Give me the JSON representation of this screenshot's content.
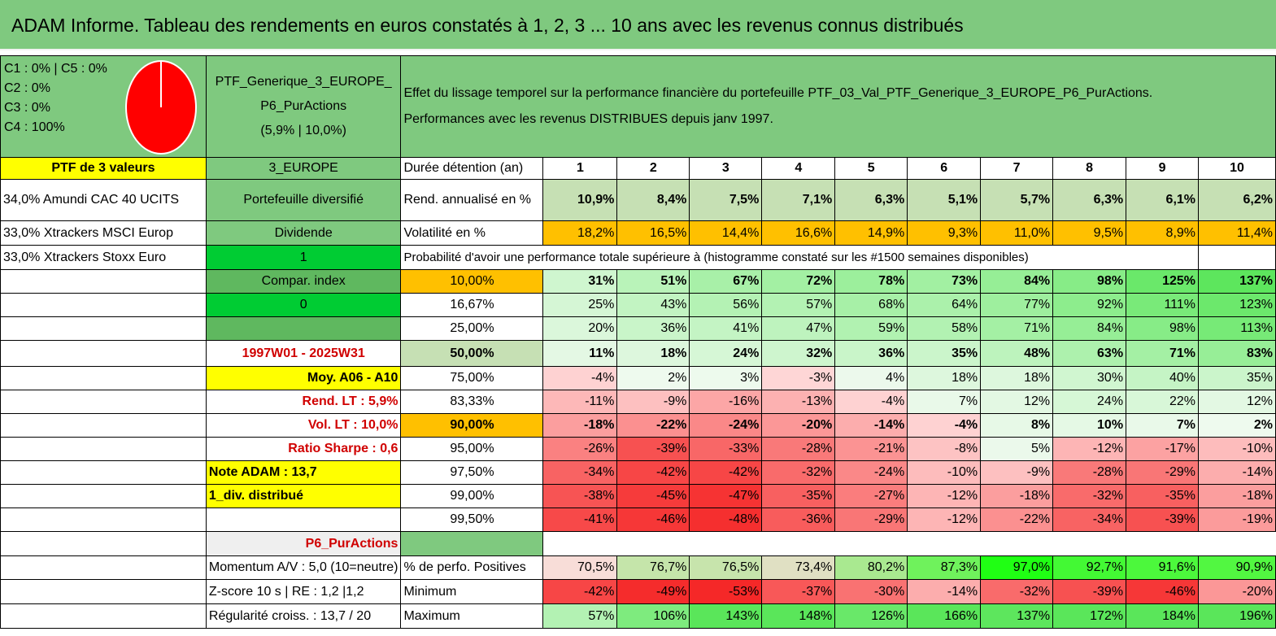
{
  "title": "ADAM Informe. Tableau des rendements en euros constatés à 1, 2, 3 ... 10 ans avec les revenus connus distribués",
  "alloc": {
    "lines": [
      "C1 : 0% | C5 : 0%",
      "C2 : 0%",
      "C3 : 0%",
      "C4 : 100%"
    ]
  },
  "ptf": {
    "name_line1": "PTF_Generique_3_EUROPE_",
    "name_line2": "P6_PurActions",
    "name_line3": "(5,9% | 10,0%)"
  },
  "effet": {
    "line1": "Effet du lissage temporel sur la performance financière du portefeuille PTF_03_Val_PTF_Generique_3_EUROPE_P6_PurActions.",
    "line2": "Performances avec les revenus DISTRIBUES depuis janv 1997."
  },
  "col_a": [
    "PTF de 3 valeurs",
    "34,0% Amundi CAC 40 UCITS",
    "33,0% Xtrackers MSCI Europ",
    "33,0% Xtrackers Stoxx Euro"
  ],
  "col_b": [
    "3_EUROPE",
    "Portefeuille diversifié",
    "Dividende",
    "1",
    "Compar. index",
    "0",
    "",
    "1997W01 - 2025W31",
    "Moy. A06 - A10",
    "Rend. LT : 5,9%",
    "Vol. LT : 10,0%",
    "Ratio Sharpe : 0,6",
    "Note ADAM : 13,7",
    "1_div. distribué",
    "",
    "P6_PurActions"
  ],
  "header": {
    "label": "Durée détention (an)",
    "years": [
      "1",
      "2",
      "3",
      "4",
      "5",
      "6",
      "7",
      "8",
      "9",
      "10"
    ]
  },
  "rend": {
    "label": "Rend. annualisé en %",
    "values": [
      "10,9%",
      "8,4%",
      "7,5%",
      "7,1%",
      "6,3%",
      "5,1%",
      "5,7%",
      "6,3%",
      "6,1%",
      "6,2%"
    ]
  },
  "vol": {
    "label": "Volatilité en %",
    "values": [
      "18,2%",
      "16,5%",
      "14,4%",
      "16,6%",
      "14,9%",
      "9,3%",
      "11,0%",
      "9,5%",
      "8,9%",
      "11,4%"
    ]
  },
  "proba_label": "Probabilité d'avoir une performance totale supérieure à (histogramme constaté sur les #1500 semaines disponibles)",
  "quantiles": [
    {
      "label": "10,00%",
      "values": [
        "31%",
        "51%",
        "67%",
        "72%",
        "78%",
        "73%",
        "84%",
        "98%",
        "125%",
        "137%"
      ]
    },
    {
      "label": "16,67%",
      "values": [
        "25%",
        "43%",
        "56%",
        "57%",
        "68%",
        "64%",
        "77%",
        "92%",
        "111%",
        "123%"
      ]
    },
    {
      "label": "25,00%",
      "values": [
        "20%",
        "36%",
        "41%",
        "47%",
        "59%",
        "58%",
        "71%",
        "84%",
        "98%",
        "113%"
      ]
    },
    {
      "label": "50,00%",
      "values": [
        "11%",
        "18%",
        "24%",
        "32%",
        "36%",
        "35%",
        "48%",
        "63%",
        "71%",
        "83%"
      ]
    },
    {
      "label": "75,00%",
      "values": [
        "-4%",
        "2%",
        "3%",
        "-3%",
        "4%",
        "18%",
        "18%",
        "30%",
        "40%",
        "35%"
      ]
    },
    {
      "label": "83,33%",
      "values": [
        "-11%",
        "-9%",
        "-16%",
        "-13%",
        "-4%",
        "7%",
        "12%",
        "24%",
        "22%",
        "12%"
      ]
    },
    {
      "label": "90,00%",
      "values": [
        "-18%",
        "-22%",
        "-24%",
        "-20%",
        "-14%",
        "-4%",
        "8%",
        "10%",
        "7%",
        "2%"
      ]
    },
    {
      "label": "95,00%",
      "values": [
        "-26%",
        "-39%",
        "-33%",
        "-28%",
        "-21%",
        "-8%",
        "5%",
        "-12%",
        "-17%",
        "-10%"
      ]
    },
    {
      "label": "97,50%",
      "values": [
        "-34%",
        "-42%",
        "-42%",
        "-32%",
        "-24%",
        "-10%",
        "-9%",
        "-28%",
        "-29%",
        "-14%"
      ]
    },
    {
      "label": "99,00%",
      "values": [
        "-38%",
        "-45%",
        "-47%",
        "-35%",
        "-27%",
        "-12%",
        "-18%",
        "-32%",
        "-35%",
        "-18%"
      ]
    },
    {
      "label": "99,50%",
      "values": [
        "-41%",
        "-46%",
        "-48%",
        "-36%",
        "-29%",
        "-12%",
        "-22%",
        "-34%",
        "-39%",
        "-19%"
      ]
    }
  ],
  "stats": [
    {
      "side": "Momentum A/V : 5,0 (10=neutre)",
      "label": "% de perfo. Positives",
      "values": [
        "70,5%",
        "76,7%",
        "76,5%",
        "73,4%",
        "80,2%",
        "87,3%",
        "97,0%",
        "92,7%",
        "91,6%",
        "90,9%"
      ]
    },
    {
      "side": "Z-score 10 s | RE : 1,2 |1,2",
      "label": "Minimum",
      "values": [
        "-42%",
        "-49%",
        "-53%",
        "-37%",
        "-30%",
        "-14%",
        "-32%",
        "-39%",
        "-46%",
        "-20%"
      ]
    },
    {
      "side": "Régularité croiss. : 13,7 / 20",
      "label": "Maximum",
      "values": [
        "57%",
        "106%",
        "143%",
        "148%",
        "126%",
        "166%",
        "137%",
        "172%",
        "184%",
        "196%"
      ]
    }
  ],
  "colors": {
    "header_green": "#7fc97f",
    "yellow": "#ffff00",
    "orange": "#ffc000",
    "pie_red": "#ff0000"
  },
  "pie": {
    "slices": [
      {
        "label": "C4",
        "value": 100
      }
    ]
  }
}
